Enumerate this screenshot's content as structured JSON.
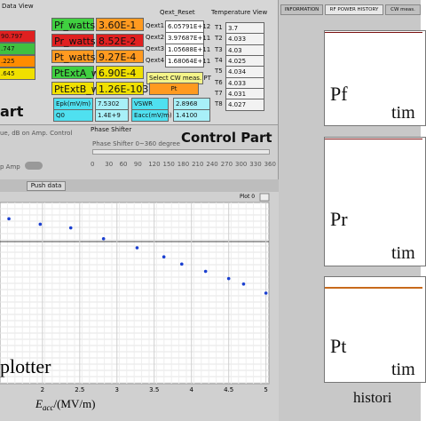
{
  "data_view": {
    "title": "Data View",
    "values": [
      "90.797",
      ".747",
      ".225",
      ".645"
    ]
  },
  "power": [
    {
      "label": "Pf_watts",
      "value": "3.60E-1"
    },
    {
      "label": "Pr_watts",
      "value": "8.52E-2"
    },
    {
      "label": "Pt_watts",
      "value": "9.27E-4"
    },
    {
      "label": "PtExtA_w",
      "value": "6.90E-4"
    },
    {
      "label": "PtExtB_w",
      "value": "1.26E-103"
    }
  ],
  "measures": [
    {
      "label": "Epk(mV/m)",
      "value": "7.5302"
    },
    {
      "label": "Q0",
      "value": "1.4E+9"
    },
    {
      "label": "VSWR",
      "value": "2.8968"
    },
    {
      "label": "Eacc(mV/m)",
      "value": "1.4100"
    }
  ],
  "qext": {
    "title": "Qext_Reset",
    "rows": [
      {
        "label": "Qext1",
        "value": "6.05791E+12"
      },
      {
        "label": "Qext2",
        "value": "3.97687E+11"
      },
      {
        "label": "Qext3",
        "value": "1.05688E+11"
      },
      {
        "label": "Qext4",
        "value": "1.68064E+11"
      }
    ]
  },
  "cw_select": {
    "label": "Select CW meas. PT",
    "value": "Pt"
  },
  "temperature": {
    "title": "Temperature View",
    "rows": [
      {
        "label": "T1",
        "value": "3.7"
      },
      {
        "label": "T2",
        "value": "4.033"
      },
      {
        "label": "T3",
        "value": "4.03"
      },
      {
        "label": "T4",
        "value": "4.025"
      },
      {
        "label": "T5",
        "value": "4.034"
      },
      {
        "label": "T6",
        "value": "4.033"
      },
      {
        "label": "T7",
        "value": "4.031"
      },
      {
        "label": "T8",
        "value": "4.027"
      }
    ]
  },
  "part_label": "art",
  "control": {
    "amp_text": "ue, dB on Amp. Control",
    "amp_button": "p Amp",
    "title": "Control Part",
    "phase_title": "Phase Shifter",
    "phase_caption": "Phase Shifter 0~360 degree",
    "phase_scale": [
      "0",
      "30",
      "60",
      "90",
      "120",
      "150",
      "180",
      "210",
      "240",
      "270",
      "300",
      "330",
      "360"
    ],
    "push_button": "Push data"
  },
  "chart_data": {
    "type": "scatter",
    "title": "plotter",
    "plot_label": "Plot 0",
    "x_label": "E",
    "x_label_sub": "acc",
    "x_label_unit": "/(MV/m)",
    "x": [
      1.55,
      1.97,
      2.38,
      2.82,
      3.27,
      3.63,
      3.87,
      4.19,
      4.5,
      4.7,
      5.0
    ],
    "values": [
      0.91,
      0.88,
      0.86,
      0.8,
      0.75,
      0.7,
      0.66,
      0.62,
      0.58,
      0.55,
      0.5
    ],
    "xlim": [
      1.43,
      5.04
    ],
    "ylim": [
      0,
      1
    ],
    "xticks": [
      2,
      2.5,
      3,
      3.5,
      4,
      4.5,
      5
    ],
    "color": "#1a3fd0",
    "grid": true
  },
  "history": {
    "tabs": [
      "INFORMATION",
      "RF POWER HISTORY",
      "CW meas."
    ],
    "panels": [
      {
        "label": "Pf",
        "axis": "tim"
      },
      {
        "label": "Pr",
        "axis": "tim"
      },
      {
        "label": "Pt",
        "axis": "tim"
      }
    ],
    "footer": "histori"
  }
}
